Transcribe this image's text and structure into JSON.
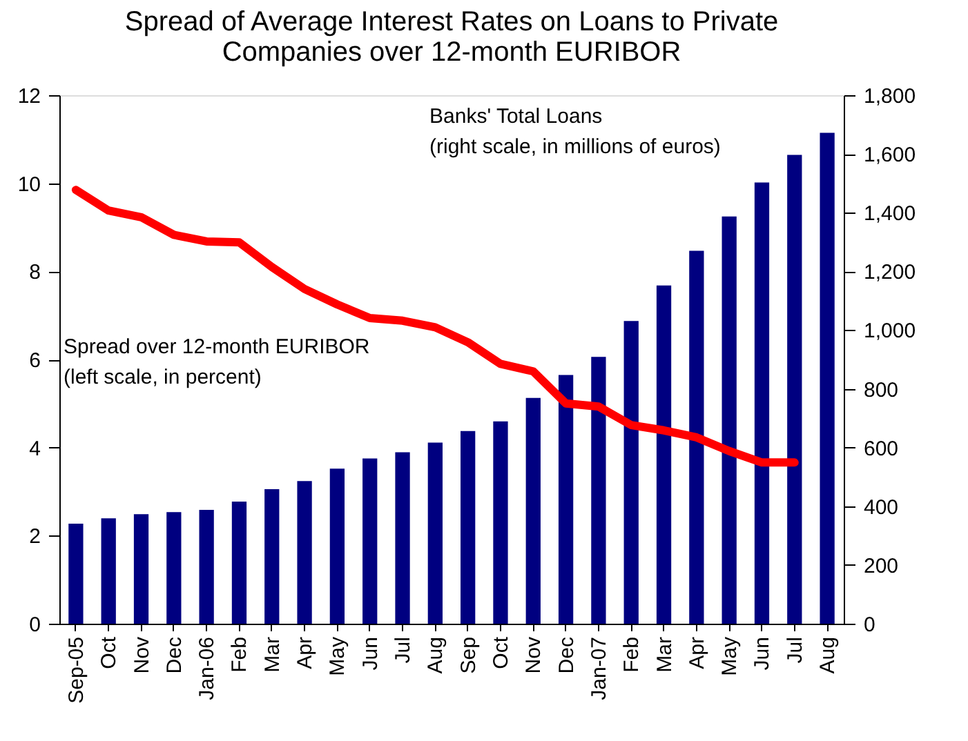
{
  "chart_data": {
    "type": "bar",
    "title": "Spread of Average Interest Rates on Loans to Private\nCompanies over 12-month EURIBOR",
    "categories": [
      "Sep-05",
      "Oct",
      "Nov",
      "Dec",
      "Jan-06",
      "Feb",
      "Mar",
      "Apr",
      "May",
      "Jun",
      "Jul",
      "Aug",
      "Sep",
      "Oct",
      "Nov",
      "Dec",
      "Jan-07",
      "Feb",
      "Mar",
      "Apr",
      "May",
      "Jun",
      "Jul",
      "Aug"
    ],
    "series": [
      {
        "axis": "y2",
        "color": "#000080",
        "values": [
          341,
          359,
          373,
          380,
          388,
          416,
          458,
          486,
          528,
          563,
          584,
          617,
          656,
          689,
          769,
          847,
          909,
          1031,
          1152,
          1270,
          1387,
          1503,
          1597,
          1672
        ]
      },
      {
        "type": "line",
        "color": "#ff0000",
        "values": [
          9.85,
          9.38,
          9.23,
          8.83,
          8.68,
          8.66,
          8.1,
          7.6,
          7.25,
          6.94,
          6.88,
          6.73,
          6.39,
          5.9,
          5.73,
          5.0,
          4.93,
          4.51,
          4.39,
          4.23,
          3.92,
          3.66,
          3.66,
          null
        ]
      }
    ],
    "ylim": [
      0,
      12
    ],
    "yticks": [
      0,
      2,
      4,
      6,
      8,
      10,
      12
    ],
    "y2lim": [
      0,
      1800
    ],
    "y2ticks": [
      0,
      200,
      400,
      600,
      800,
      {
        "value": 1000,
        "label": "1,000"
      },
      {
        "value": 1200,
        "label": "1,200"
      },
      {
        "value": 1400,
        "label": "1,400"
      },
      {
        "value": 1600,
        "label": "1,600"
      },
      {
        "value": 1800,
        "label": "1,800"
      }
    ],
    "annotations": [
      "Banks' Total Loans\n(right scale,  in millions of euros)",
      "Spread over 12-month EURIBOR\n(left scale, in percent)"
    ],
    "grid": false,
    "line_style": "solid",
    "marker": "none"
  }
}
